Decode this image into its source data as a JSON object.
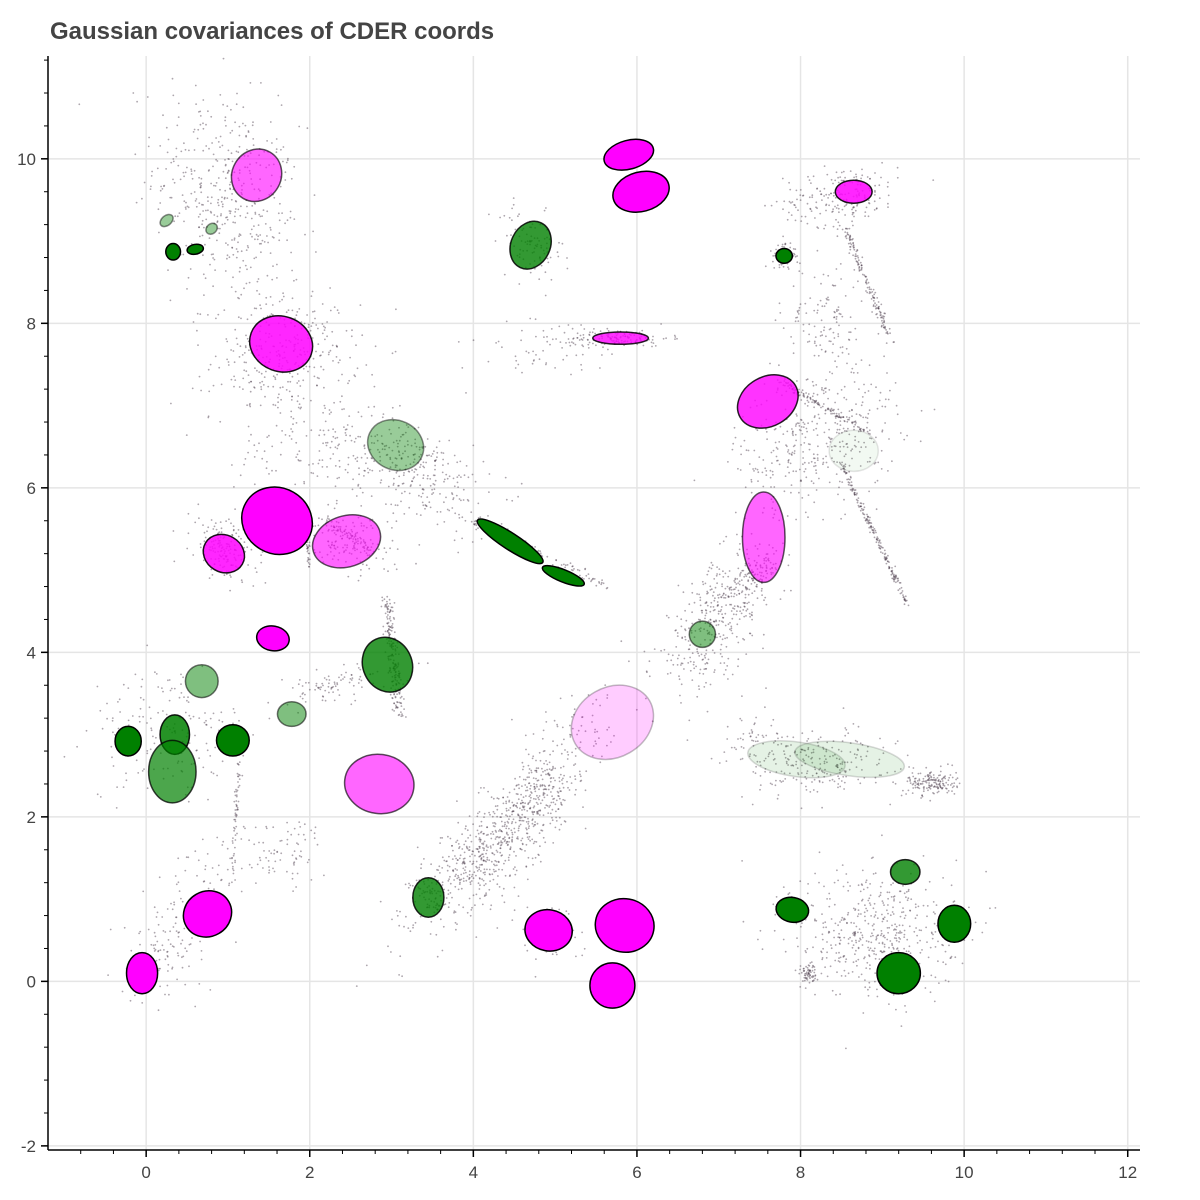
{
  "chart_data": {
    "type": "scatter",
    "title": "Gaussian covariances of CDER coords",
    "xlabel": "",
    "ylabel": "",
    "xlim": [
      -1.2,
      12.15
    ],
    "ylim": [
      -2.05,
      11.25
    ],
    "grid": true,
    "x_ticks": [
      0,
      2,
      4,
      6,
      8,
      10,
      12
    ],
    "y_ticks": [
      -2,
      0,
      2,
      4,
      6,
      8,
      10
    ],
    "colors": {
      "magenta": "#ff00ff",
      "green": "#008000",
      "points": "#4a3a4a",
      "grid": "#e5e5e5",
      "axis": "#000000"
    },
    "ellipses": [
      {
        "color": "magenta",
        "cx": 1.35,
        "cy": 9.8,
        "w": 0.6,
        "h": 0.65,
        "angle": -30,
        "alpha": 0.6
      },
      {
        "color": "magenta",
        "cx": 5.9,
        "cy": 10.05,
        "w": 0.62,
        "h": 0.35,
        "angle": 15,
        "alpha": 1.0
      },
      {
        "color": "magenta",
        "cx": 6.05,
        "cy": 9.6,
        "w": 0.7,
        "h": 0.48,
        "angle": 15,
        "alpha": 1.0
      },
      {
        "color": "magenta",
        "cx": 8.65,
        "cy": 9.6,
        "w": 0.45,
        "h": 0.28,
        "angle": 0,
        "alpha": 0.85
      },
      {
        "color": "magenta",
        "cx": 1.65,
        "cy": 7.75,
        "w": 0.78,
        "h": 0.67,
        "angle": -20,
        "alpha": 0.85
      },
      {
        "color": "magenta",
        "cx": 5.8,
        "cy": 7.82,
        "w": 0.68,
        "h": 0.15,
        "angle": 0,
        "alpha": 0.8
      },
      {
        "color": "magenta",
        "cx": 7.6,
        "cy": 7.05,
        "w": 0.78,
        "h": 0.6,
        "angle": 30,
        "alpha": 0.8
      },
      {
        "color": "magenta",
        "cx": 1.6,
        "cy": 5.6,
        "w": 0.88,
        "h": 0.8,
        "angle": -30,
        "alpha": 1.0
      },
      {
        "color": "magenta",
        "cx": 2.45,
        "cy": 5.35,
        "w": 0.85,
        "h": 0.62,
        "angle": 18,
        "alpha": 0.6
      },
      {
        "color": "magenta",
        "cx": 0.95,
        "cy": 5.2,
        "w": 0.52,
        "h": 0.45,
        "angle": -30,
        "alpha": 0.85
      },
      {
        "color": "magenta",
        "cx": 7.55,
        "cy": 5.4,
        "w": 0.52,
        "h": 1.1,
        "angle": 0,
        "alpha": 0.6
      },
      {
        "color": "magenta",
        "cx": 1.55,
        "cy": 4.17,
        "w": 0.4,
        "h": 0.3,
        "angle": -10,
        "alpha": 1.0
      },
      {
        "color": "magenta",
        "cx": 5.7,
        "cy": 3.15,
        "w": 1.05,
        "h": 0.85,
        "angle": 30,
        "alpha": 0.2
      },
      {
        "color": "magenta",
        "cx": 2.85,
        "cy": 2.4,
        "w": 0.85,
        "h": 0.72,
        "angle": -8,
        "alpha": 0.6
      },
      {
        "color": "magenta",
        "cx": 0.75,
        "cy": 0.82,
        "w": 0.6,
        "h": 0.55,
        "angle": 30,
        "alpha": 1.0
      },
      {
        "color": "magenta",
        "cx": -0.05,
        "cy": 0.1,
        "w": 0.38,
        "h": 0.5,
        "angle": 0,
        "alpha": 1.0
      },
      {
        "color": "magenta",
        "cx": 4.92,
        "cy": 0.62,
        "w": 0.58,
        "h": 0.5,
        "angle": -10,
        "alpha": 1.0
      },
      {
        "color": "magenta",
        "cx": 5.85,
        "cy": 0.68,
        "w": 0.72,
        "h": 0.65,
        "angle": -10,
        "alpha": 1.0
      },
      {
        "color": "magenta",
        "cx": 5.7,
        "cy": -0.05,
        "w": 0.55,
        "h": 0.55,
        "angle": 0,
        "alpha": 1.0
      },
      {
        "color": "green",
        "cx": 4.7,
        "cy": 8.95,
        "w": 0.48,
        "h": 0.6,
        "angle": -25,
        "alpha": 0.8
      },
      {
        "color": "green",
        "cx": 0.25,
        "cy": 9.25,
        "w": 0.18,
        "h": 0.12,
        "angle": 40,
        "alpha": 0.4
      },
      {
        "color": "green",
        "cx": 0.8,
        "cy": 9.15,
        "w": 0.15,
        "h": 0.12,
        "angle": 40,
        "alpha": 0.4
      },
      {
        "color": "green",
        "cx": 0.33,
        "cy": 8.87,
        "w": 0.18,
        "h": 0.2,
        "angle": 0,
        "alpha": 1.0
      },
      {
        "color": "green",
        "cx": 0.6,
        "cy": 8.9,
        "w": 0.2,
        "h": 0.12,
        "angle": 10,
        "alpha": 1.0
      },
      {
        "color": "green",
        "cx": 7.8,
        "cy": 8.82,
        "w": 0.2,
        "h": 0.18,
        "angle": 0,
        "alpha": 1.0
      },
      {
        "color": "green",
        "cx": 3.05,
        "cy": 6.52,
        "w": 0.7,
        "h": 0.6,
        "angle": -25,
        "alpha": 0.4
      },
      {
        "color": "green",
        "cx": 8.65,
        "cy": 6.45,
        "w": 0.6,
        "h": 0.5,
        "angle": 0,
        "alpha": 0.05
      },
      {
        "color": "green",
        "cx": 4.45,
        "cy": 5.35,
        "w": 0.95,
        "h": 0.2,
        "angle": -33,
        "alpha": 1.0
      },
      {
        "color": "green",
        "cx": 5.1,
        "cy": 4.93,
        "w": 0.55,
        "h": 0.15,
        "angle": -22,
        "alpha": 1.0
      },
      {
        "color": "green",
        "cx": 2.95,
        "cy": 3.85,
        "w": 0.6,
        "h": 0.68,
        "angle": 25,
        "alpha": 0.8
      },
      {
        "color": "green",
        "cx": 6.8,
        "cy": 4.22,
        "w": 0.32,
        "h": 0.32,
        "angle": 0,
        "alpha": 0.5
      },
      {
        "color": "green",
        "cx": 0.68,
        "cy": 3.65,
        "w": 0.4,
        "h": 0.4,
        "angle": 0,
        "alpha": 0.5
      },
      {
        "color": "green",
        "cx": 1.78,
        "cy": 3.25,
        "w": 0.35,
        "h": 0.3,
        "angle": 0,
        "alpha": 0.5
      },
      {
        "color": "green",
        "cx": 0.35,
        "cy": 3.0,
        "w": 0.36,
        "h": 0.48,
        "angle": 0,
        "alpha": 0.85
      },
      {
        "color": "green",
        "cx": -0.22,
        "cy": 2.92,
        "w": 0.32,
        "h": 0.36,
        "angle": 0,
        "alpha": 1.0
      },
      {
        "color": "green",
        "cx": 1.06,
        "cy": 2.93,
        "w": 0.4,
        "h": 0.38,
        "angle": 0,
        "alpha": 1.0
      },
      {
        "color": "green",
        "cx": 0.32,
        "cy": 2.55,
        "w": 0.58,
        "h": 0.76,
        "angle": 0,
        "alpha": 0.7
      },
      {
        "color": "green",
        "cx": 7.95,
        "cy": 2.7,
        "w": 1.2,
        "h": 0.42,
        "angle": -8,
        "alpha": 0.1
      },
      {
        "color": "green",
        "cx": 8.6,
        "cy": 2.7,
        "w": 1.35,
        "h": 0.4,
        "angle": -8,
        "alpha": 0.1
      },
      {
        "color": "green",
        "cx": 3.45,
        "cy": 1.02,
        "w": 0.38,
        "h": 0.48,
        "angle": 0,
        "alpha": 0.8
      },
      {
        "color": "green",
        "cx": 9.28,
        "cy": 1.33,
        "w": 0.36,
        "h": 0.3,
        "angle": 0,
        "alpha": 0.8
      },
      {
        "color": "green",
        "cx": 7.9,
        "cy": 0.87,
        "w": 0.4,
        "h": 0.3,
        "angle": -10,
        "alpha": 1.0
      },
      {
        "color": "green",
        "cx": 9.88,
        "cy": 0.7,
        "w": 0.4,
        "h": 0.45,
        "angle": 0,
        "alpha": 1.0
      },
      {
        "color": "green",
        "cx": 9.2,
        "cy": 0.1,
        "w": 0.53,
        "h": 0.5,
        "angle": 0,
        "alpha": 1.0
      }
    ],
    "point_clusters": [
      {
        "cx": 1.0,
        "cy": 9.5,
        "sx": 0.45,
        "sy": 0.7,
        "rho": -0.3,
        "n": 450
      },
      {
        "cx": 1.7,
        "cy": 7.6,
        "sx": 0.45,
        "sy": 0.35,
        "rho": 0.1,
        "n": 320
      },
      {
        "cx": 4.7,
        "cy": 8.95,
        "sx": 0.2,
        "sy": 0.22,
        "rho": -0.3,
        "n": 90
      },
      {
        "cx": 5.8,
        "cy": 7.82,
        "sx": 0.3,
        "sy": 0.05,
        "rho": 0.0,
        "n": 130
      },
      {
        "cx": 5.0,
        "cy": 7.7,
        "sx": 0.5,
        "sy": 0.2,
        "rho": 0.3,
        "n": 70
      },
      {
        "cx": 8.5,
        "cy": 9.55,
        "sx": 0.35,
        "sy": 0.18,
        "rho": 0.2,
        "n": 200
      },
      {
        "cx": 7.8,
        "cy": 8.82,
        "sx": 0.07,
        "sy": 0.06,
        "rho": 0.0,
        "n": 120
      },
      {
        "cx": 8.3,
        "cy": 8.0,
        "sx": 0.25,
        "sy": 0.4,
        "rho": 0.0,
        "n": 130
      },
      {
        "cx": 8.2,
        "cy": 6.6,
        "sx": 0.5,
        "sy": 0.45,
        "rho": 0.3,
        "n": 380
      },
      {
        "cx": 3.3,
        "cy": 6.2,
        "sx": 0.45,
        "sy": 0.35,
        "rho": -0.5,
        "n": 300
      },
      {
        "cx": 2.1,
        "cy": 6.5,
        "sx": 0.5,
        "sy": 0.3,
        "rho": 0.0,
        "n": 130
      },
      {
        "cx": 0.95,
        "cy": 5.25,
        "sx": 0.2,
        "sy": 0.2,
        "rho": -0.3,
        "n": 160
      },
      {
        "cx": 2.45,
        "cy": 5.35,
        "sx": 0.28,
        "sy": 0.2,
        "rho": -0.5,
        "n": 130
      },
      {
        "cx": 6.95,
        "cy": 4.35,
        "sx": 0.38,
        "sy": 0.45,
        "rho": 0.6,
        "n": 350
      },
      {
        "cx": 7.4,
        "cy": 4.9,
        "sx": 0.2,
        "sy": 0.15,
        "rho": 0.7,
        "n": 130
      },
      {
        "cx": 4.2,
        "cy": 1.6,
        "sx": 0.45,
        "sy": 0.45,
        "rho": 0.75,
        "n": 600
      },
      {
        "cx": 4.8,
        "cy": 2.3,
        "sx": 0.25,
        "sy": 0.25,
        "rho": 0.5,
        "n": 200
      },
      {
        "cx": 2.3,
        "cy": 3.6,
        "sx": 0.35,
        "sy": 0.12,
        "rho": 0.6,
        "n": 90
      },
      {
        "cx": 0.3,
        "cy": 3.0,
        "sx": 0.5,
        "sy": 0.4,
        "rho": 0.0,
        "n": 170
      },
      {
        "cx": 1.7,
        "cy": 1.6,
        "sx": 0.25,
        "sy": 0.2,
        "rho": 0.0,
        "n": 70
      },
      {
        "cx": 0.2,
        "cy": 0.4,
        "sx": 0.25,
        "sy": 0.3,
        "rho": 0.3,
        "n": 110
      },
      {
        "cx": 5.35,
        "cy": 3.1,
        "sx": 0.3,
        "sy": 0.25,
        "rho": 0.0,
        "n": 60
      },
      {
        "cx": 7.5,
        "cy": 2.9,
        "sx": 0.3,
        "sy": 0.18,
        "rho": -0.3,
        "n": 60
      },
      {
        "cx": 8.2,
        "cy": 2.65,
        "sx": 0.45,
        "sy": 0.2,
        "rho": 0.1,
        "n": 220
      },
      {
        "cx": 9.6,
        "cy": 2.42,
        "sx": 0.15,
        "sy": 0.08,
        "rho": 0.0,
        "n": 170
      },
      {
        "cx": 8.9,
        "cy": 0.6,
        "sx": 0.5,
        "sy": 0.4,
        "rho": 0.0,
        "n": 500
      },
      {
        "cx": 8.1,
        "cy": 0.1,
        "sx": 0.05,
        "sy": 0.06,
        "rho": 0.0,
        "n": 60
      },
      {
        "cx": 4.9,
        "cy": 0.62,
        "sx": 0.2,
        "sy": 0.18,
        "rho": 0.0,
        "n": 70
      },
      {
        "cx": 3.45,
        "cy": 1.02,
        "sx": 0.1,
        "sy": 0.15,
        "rho": 0.0,
        "n": 40
      },
      {
        "cx": 0.8,
        "cy": 1.3,
        "sx": 0.3,
        "sy": 0.3,
        "rho": 0.4,
        "n": 60
      }
    ],
    "point_streaks": [
      {
        "x0": 8.55,
        "y0": 9.15,
        "x1": 9.1,
        "y1": 7.8,
        "n": 150,
        "jitter": 0.025
      },
      {
        "x0": 7.75,
        "y0": 7.3,
        "x1": 8.85,
        "y1": 6.65,
        "n": 120,
        "jitter": 0.02
      },
      {
        "x0": 8.5,
        "y0": 6.3,
        "x1": 9.3,
        "y1": 4.6,
        "n": 200,
        "jitter": 0.02
      },
      {
        "x0": 2.95,
        "y0": 4.65,
        "x1": 3.1,
        "y1": 3.25,
        "n": 200,
        "jitter": 0.04
      },
      {
        "x0": 1.15,
        "y0": 2.8,
        "x1": 1.05,
        "y1": 1.3,
        "n": 60,
        "jitter": 0.015
      },
      {
        "x0": 4.0,
        "y0": 5.6,
        "x1": 5.6,
        "y1": 4.8,
        "n": 120,
        "jitter": 0.04
      },
      {
        "x0": 2.2,
        "y0": 5.6,
        "x1": 2.8,
        "y1": 5.2,
        "n": 60,
        "jitter": 0.03
      },
      {
        "x0": 1.95,
        "y0": 5.6,
        "x1": 2.0,
        "y1": 5.0,
        "n": 40,
        "jitter": 0.01
      }
    ]
  }
}
